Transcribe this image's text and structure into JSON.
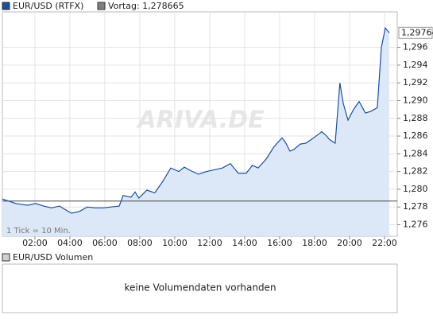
{
  "chart_data": {
    "type": "line",
    "x": [
      0.14,
      0.91,
      1.59,
      2.05,
      2.5,
      2.95,
      3.41,
      4.09,
      4.55,
      5.0,
      5.45,
      5.91,
      6.36,
      6.82,
      7.05,
      7.5,
      7.73,
      7.95,
      8.41,
      8.86,
      9.32,
      9.77,
      10.23,
      10.55,
      10.91,
      11.36,
      11.82,
      12.27,
      12.73,
      13.18,
      13.64,
      14.09,
      14.45,
      14.77,
      15.23,
      15.68,
      16.14,
      16.36,
      16.59,
      16.82,
      17.18,
      17.5,
      17.95,
      18.41,
      18.64,
      18.86,
      19.18,
      19.45,
      19.64,
      19.91,
      20.23,
      20.55,
      20.91,
      21.23,
      21.59,
      21.82,
      22.05,
      22.27
    ],
    "series": [
      {
        "name": "EUR/USD (RTFX)",
        "color": "#1c4f9c",
        "values": [
          1.2789,
          1.2784,
          1.2782,
          1.2784,
          1.2781,
          1.2779,
          1.2781,
          1.2773,
          1.2775,
          1.278,
          1.2779,
          1.2779,
          1.278,
          1.2781,
          1.2793,
          1.2791,
          1.2797,
          1.279,
          1.2799,
          1.2796,
          1.2809,
          1.2824,
          1.282,
          1.2825,
          1.2821,
          1.2817,
          1.282,
          1.2822,
          1.2824,
          1.2829,
          1.2818,
          1.2818,
          1.2827,
          1.2824,
          1.2834,
          1.2848,
          1.2858,
          1.2852,
          1.2843,
          1.2845,
          1.2851,
          1.2852,
          1.2858,
          1.2865,
          1.2861,
          1.2856,
          1.2852,
          1.292,
          1.2897,
          1.2878,
          1.289,
          1.2899,
          1.2886,
          1.2888,
          1.2892,
          1.296,
          1.2982,
          1.29764
        ]
      }
    ],
    "reference_line": {
      "label": "Vortag: 1,278665",
      "value": 1.278665,
      "color": "#404040"
    },
    "last_value_label": "1,29764",
    "xlim": [
      0.14,
      22.73
    ],
    "xticks": [
      {
        "value": 2,
        "label": "02:00"
      },
      {
        "value": 4,
        "label": "04:00"
      },
      {
        "value": 6,
        "label": "06:00"
      },
      {
        "value": 8,
        "label": "08:00"
      },
      {
        "value": 10,
        "label": "10:00"
      },
      {
        "value": 12,
        "label": "12:00"
      },
      {
        "value": 14,
        "label": "14:00"
      },
      {
        "value": 16,
        "label": "16:00"
      },
      {
        "value": 18,
        "label": "18:00"
      },
      {
        "value": 20,
        "label": "20:00"
      },
      {
        "value": 22,
        "label": "22:00"
      }
    ],
    "ylim": [
      1.2747,
      1.3
    ],
    "yticks": [
      {
        "value": 1.276,
        "label": "1,276"
      },
      {
        "value": 1.278,
        "label": "1,278"
      },
      {
        "value": 1.28,
        "label": "1,280"
      },
      {
        "value": 1.282,
        "label": "1,282"
      },
      {
        "value": 1.284,
        "label": "1,284"
      },
      {
        "value": 1.286,
        "label": "1,286"
      },
      {
        "value": 1.288,
        "label": "1,288"
      },
      {
        "value": 1.29,
        "label": "1,290"
      },
      {
        "value": 1.292,
        "label": "1,292"
      },
      {
        "value": 1.294,
        "label": "1,294"
      },
      {
        "value": 1.296,
        "label": "1,296"
      }
    ],
    "grid": true,
    "note": "1 Tick = 10 Min.",
    "watermark": "ARIVA.DE"
  },
  "volume_panel": {
    "legend": "EUR/USD Volumen",
    "message": "keine Volumendaten vorhanden"
  }
}
